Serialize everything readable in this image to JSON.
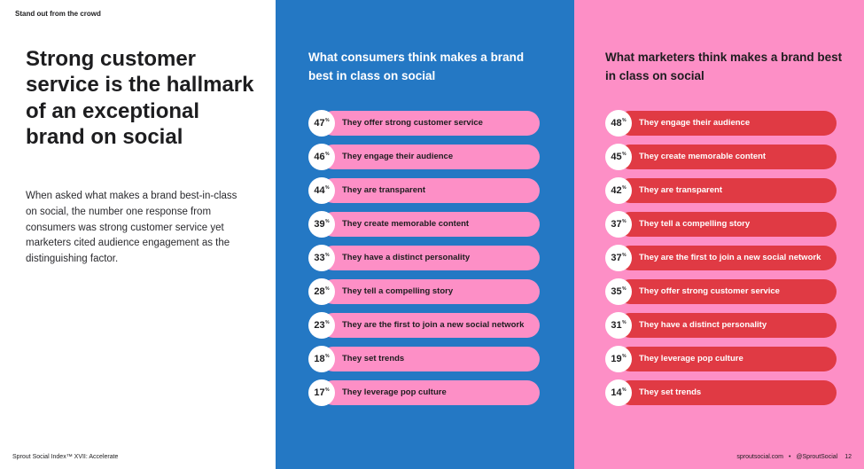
{
  "kicker": "Stand out from the crowd",
  "headline": "Strong customer service is the hallmark of an exceptional brand on social",
  "body": "When asked what makes a brand best-in-class on social, the number one response from consumers was strong customer service yet marketers cited audience engagement as the distinguishing factor.",
  "footer": {
    "left": "Sprout Social Index™ XVII: Accelerate",
    "site": "sproutsocial.com",
    "separator": "•",
    "handle": "@SproutSocial",
    "page": "12"
  },
  "percent_symbol": "%",
  "colors": {
    "consumers_panel": "#2478c4",
    "marketers_panel": "#fd8fc6",
    "consumers_bar": "#fd8fc6",
    "marketers_bar": "#e03a44"
  },
  "consumers": {
    "title": "What consumers think makes a brand best in class on social",
    "items": [
      {
        "value": "47",
        "label": "They offer strong customer service"
      },
      {
        "value": "46",
        "label": "They engage their audience"
      },
      {
        "value": "44",
        "label": "They are transparent"
      },
      {
        "value": "39",
        "label": "They create memorable content"
      },
      {
        "value": "33",
        "label": "They have a distinct personality"
      },
      {
        "value": "28",
        "label": "They tell a compelling story"
      },
      {
        "value": "23",
        "label": "They are the first to join a new social network"
      },
      {
        "value": "18",
        "label": "They set trends"
      },
      {
        "value": "17",
        "label": "They leverage pop culture"
      }
    ]
  },
  "marketers": {
    "title": "What marketers think makes a brand best in class on social",
    "items": [
      {
        "value": "48",
        "label": "They engage their audience"
      },
      {
        "value": "45",
        "label": "They create memorable content"
      },
      {
        "value": "42",
        "label": "They are transparent"
      },
      {
        "value": "37",
        "label": "They tell a compelling story"
      },
      {
        "value": "37",
        "label": "They are the first to join a new social network"
      },
      {
        "value": "35",
        "label": "They offer strong customer service"
      },
      {
        "value": "31",
        "label": "They have a distinct personality"
      },
      {
        "value": "19",
        "label": "They leverage pop culture"
      },
      {
        "value": "14",
        "label": "They set trends"
      }
    ]
  }
}
